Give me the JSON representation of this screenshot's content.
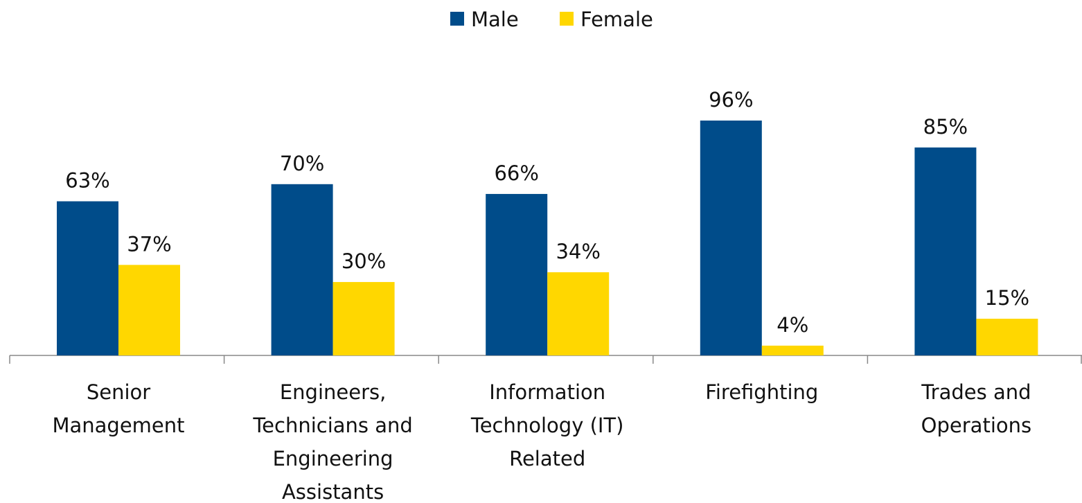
{
  "chart_data": {
    "type": "bar",
    "categories": [
      "Senior\nManagement",
      "Engineers,\nTechnicians and\nEngineering\nAssistants",
      "Information\nTechnology (IT)\nRelated",
      "Firefighting",
      "Trades and\nOperations"
    ],
    "series": [
      {
        "name": "Male",
        "color": "#004c8a",
        "values": [
          63,
          70,
          66,
          96,
          85
        ],
        "value_labels": [
          "63%",
          "70%",
          "66%",
          "96%",
          "85%"
        ]
      },
      {
        "name": "Female",
        "color": "#ffd700",
        "values": [
          37,
          30,
          34,
          4,
          15
        ],
        "value_labels": [
          "37%",
          "30%",
          "34%",
          "4%",
          "15%"
        ]
      }
    ],
    "legend": "top"
  }
}
